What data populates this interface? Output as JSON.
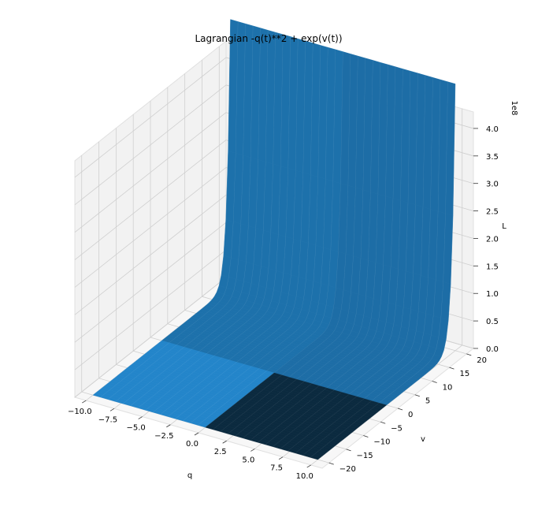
{
  "chart_data": {
    "type": "surface3d",
    "title": "Lagrangian -q(t)**2 + exp(v(t))",
    "xlabel": "q",
    "ylabel": "v",
    "zlabel": "L",
    "z_offset_label": "1e8",
    "xlim": [
      -11,
      11
    ],
    "ylim": [
      -22,
      22
    ],
    "zlim": [
      0,
      4.3
    ],
    "x_ticks": [
      -10.0,
      -7.5,
      -5.0,
      -2.5,
      0.0,
      2.5,
      5.0,
      7.5,
      10.0
    ],
    "x_tick_labels": [
      "−10.0",
      "−7.5",
      "−5.0",
      "−2.5",
      "0.0",
      "2.5",
      "5.0",
      "7.5",
      "10.0"
    ],
    "y_ticks": [
      -20,
      -15,
      -10,
      -5,
      0,
      5,
      10,
      15,
      20
    ],
    "y_tick_labels": [
      "−20",
      "−15",
      "−10",
      "−5",
      "0",
      "5",
      "10",
      "15",
      "20"
    ],
    "z_ticks": [
      0.0,
      0.5,
      1.0,
      1.5,
      2.0,
      2.5,
      3.0,
      3.5,
      4.0
    ],
    "z_tick_labels": [
      "0.0",
      "0.5",
      "1.0",
      "1.5",
      "2.0",
      "2.5",
      "3.0",
      "3.5",
      "4.0"
    ],
    "surface": {
      "function": "-q**2 + exp(v)",
      "q_range": [
        -10,
        10
      ],
      "v_range": [
        -20,
        20
      ],
      "z_max": 4.85,
      "color": "#1f77b4"
    },
    "grid": true,
    "pane_color": "#f2f2f2"
  }
}
